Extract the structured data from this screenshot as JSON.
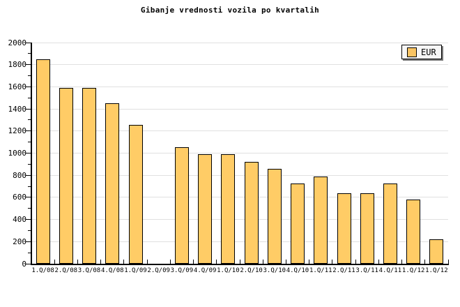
{
  "title": "Gibanje vrednosti vozila po kvartalih",
  "legend": {
    "label": "EUR",
    "position": "top-right",
    "swatch_color": "#f9c463"
  },
  "colors": {
    "background": "#ffffff",
    "bar_fill": "#ffcc66",
    "bar_border": "#000000",
    "gridline": "#e0e0e0",
    "axis": "#000000",
    "legend_background": "#f6f6f6",
    "legend_border": "#000000",
    "legend_shadow": "#777777",
    "text": "#000000"
  },
  "chart_data": {
    "type": "bar",
    "title": "Gibanje vrednosti vozila po kvartalih",
    "categories": [
      "1.Q/08",
      "2.Q/08",
      "3.Q/08",
      "4.Q/08",
      "1.Q/09",
      "2.Q/09",
      "3.Q/09",
      "4.Q/09",
      "1.Q/10",
      "2.Q/10",
      "3.Q/10",
      "4.Q/10",
      "1.Q/11",
      "2.Q/11",
      "3.Q/11",
      "4.Q/11",
      "1.Q/12",
      "1.Q/12"
    ],
    "series": [
      {
        "name": "EUR",
        "values": [
          1850,
          1590,
          1590,
          1450,
          1255,
          0,
          1055,
          990,
          990,
          920,
          860,
          725,
          790,
          640,
          640,
          725,
          580,
          220
        ]
      }
    ],
    "xlabel": "",
    "ylabel": "",
    "ylim": [
      0,
      2000
    ],
    "yticks": [
      0,
      200,
      400,
      600,
      800,
      1000,
      1200,
      1400,
      1600,
      1800,
      2000
    ],
    "ytick_interval": 200,
    "yminor_interval": 100,
    "grid": "horizontal",
    "legend_position": "top-right",
    "note_missing_value_category": "2.Q/09"
  }
}
